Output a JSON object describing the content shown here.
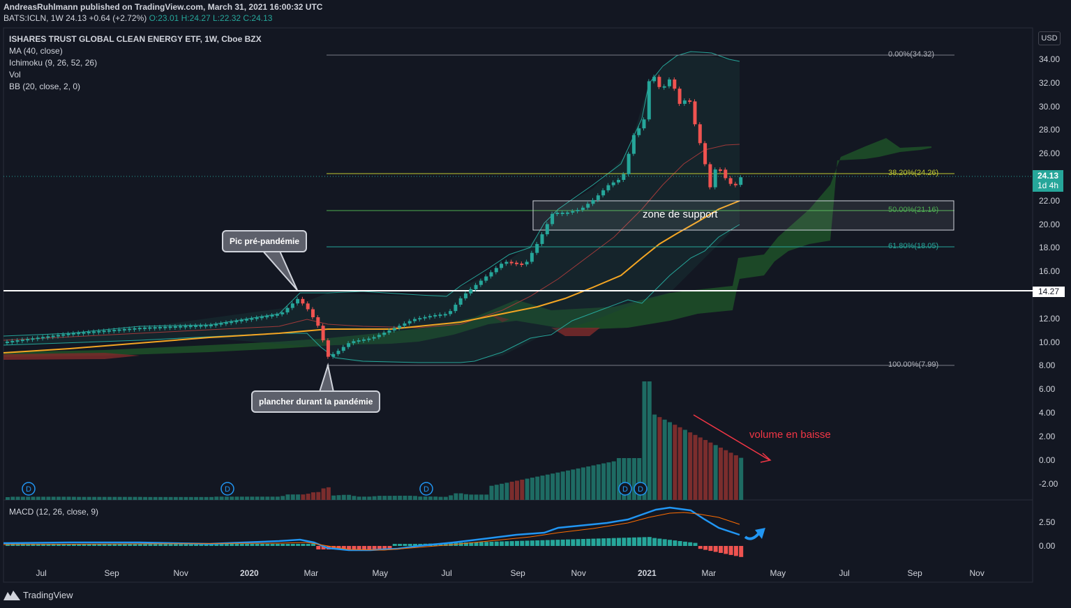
{
  "header": {
    "publisher_line": "AndreasRuhlmann published on TradingView.com, March 31, 2021 16:00:32 UTC",
    "symbol": "BATS:ICLN, 1W",
    "price": "24.13",
    "change": "+0.64 (+2.72%)",
    "open": "O:23.01",
    "high": "H:24.27",
    "low": "L:22.32",
    "close": "C:24.13"
  },
  "indicators": {
    "title": "ISHARES TRUST GLOBAL CLEAN ENERGY ETF, 1W, Cboe BZX",
    "ma": "MA (40, close)",
    "ichimoku": "Ichimoku (9, 26, 52, 26)",
    "vol": "Vol",
    "bb": "BB (20, close, 2, 0)",
    "macd": "MACD (12, 26, close, 9)"
  },
  "currency_button": "USD",
  "price_axis": [
    "34.00",
    "32.00",
    "30.00",
    "28.00",
    "26.00",
    "24.00",
    "22.00",
    "20.00",
    "18.00",
    "16.00",
    "12.00",
    "10.00",
    "8.00",
    "6.00",
    "4.00",
    "2.00",
    "0.00",
    "-2.00"
  ],
  "macd_axis": [
    "2.50",
    "0.00"
  ],
  "current_price_tag": {
    "price": "24.13",
    "countdown": "1d 4h"
  },
  "line_price_tag": "14.27",
  "time_axis": [
    "Jul",
    "Sep",
    "Nov",
    "2020",
    "Mar",
    "May",
    "Jul",
    "Sep",
    "Nov",
    "2021",
    "Mar",
    "May",
    "Jul",
    "Sep",
    "Nov"
  ],
  "fib_levels": [
    {
      "label": "0.00%(34.32)",
      "color": "#b2b5be"
    },
    {
      "label": "38.20%(24.26)",
      "color": "#c0ca33"
    },
    {
      "label": "50.00%(21.16)",
      "color": "#4caf50"
    },
    {
      "label": "61.80%(18.05)",
      "color": "#26a69a"
    },
    {
      "label": "100.00%(7.99)",
      "color": "#b2b5be"
    }
  ],
  "annotations": {
    "pre_pandemic_peak": "Pic pré-pandémie",
    "pandemic_floor": "plancher durant la pandémie",
    "support_zone": "zone de support",
    "falling_volume": "volume en baisse"
  },
  "dividend_marker": "D",
  "footer": {
    "brand": "TradingView"
  },
  "colors": {
    "background": "#131722",
    "up": "#26a69a",
    "down": "#ef5350",
    "ma": "#f5a623",
    "macd": "#2196f3",
    "signal": "#ff6d00"
  }
}
